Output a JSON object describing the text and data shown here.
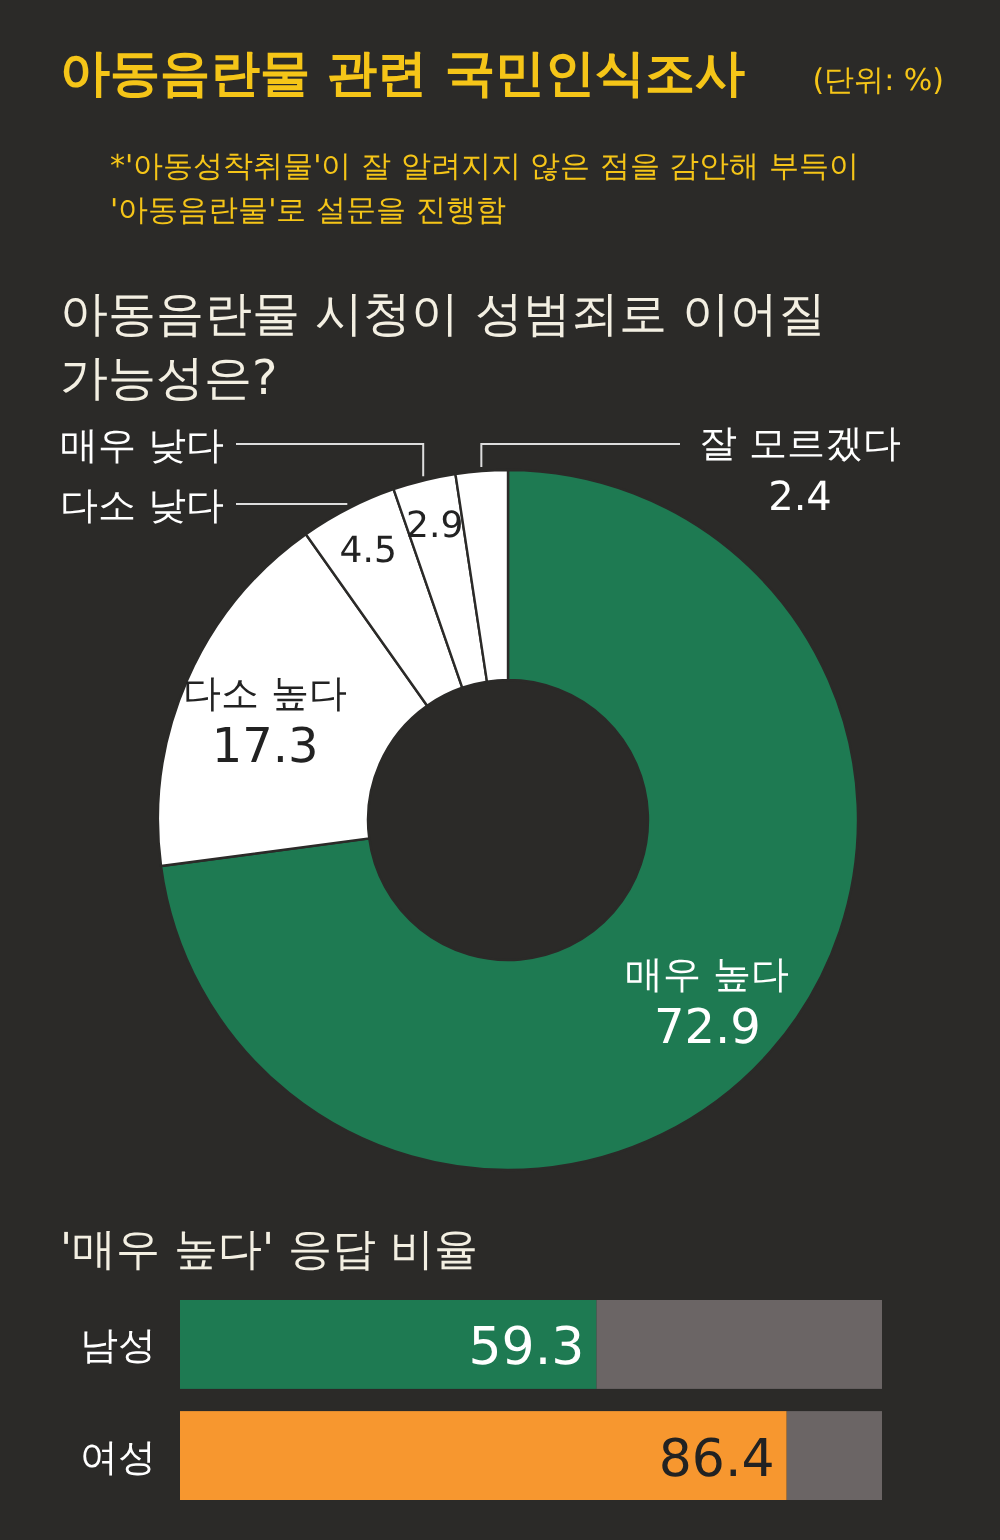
{
  "chart_data": [
    {
      "type": "other",
      "title": "아동음란물 관련 국민인식조사",
      "subtitle": "(단위: %)",
      "annotations": [
        "*'아동성착취물'이 잘 알려지지 않은 점을 감안해 부득이 '아동음란물'로 설문을 진행함"
      ]
    },
    {
      "type": "donut",
      "title": "아동음란물 시청이 성범죄로 이어질 가능성은?",
      "categories": [
        "매우 높다",
        "다소 높다",
        "다소 낮다",
        "매우 낮다",
        "잘 모르겠다"
      ],
      "values": [
        72.9,
        17.3,
        4.5,
        2.9,
        2.4
      ],
      "colors": [
        "#1e7a52",
        "#ffffff",
        "#ffffff",
        "#ffffff",
        "#ffffff"
      ],
      "data_labels": true
    },
    {
      "type": "bar",
      "orientation": "horizontal",
      "title": "'매우 높다' 응답 비율",
      "categories": [
        "남성",
        "여성"
      ],
      "values": [
        59.3,
        86.4
      ],
      "colors": [
        "#1e7a52",
        "#f7972f"
      ],
      "xlim": [
        0,
        100
      ],
      "data_labels": true
    }
  ]
}
